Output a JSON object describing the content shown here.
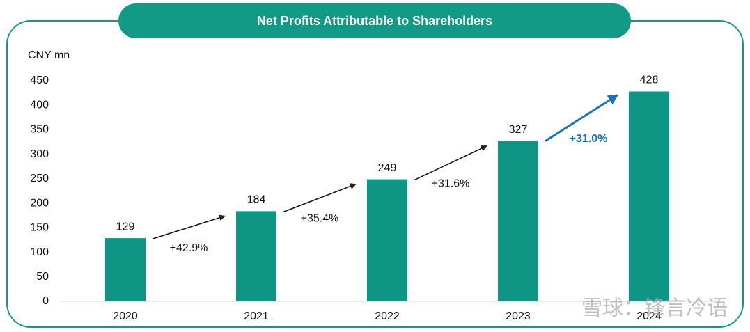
{
  "chart_data": {
    "type": "bar",
    "title": "Net Profits Attributable to Shareholders",
    "y_axis_label": "CNY mn",
    "categories": [
      "2020",
      "2021",
      "2022",
      "2023",
      "2024"
    ],
    "values": [
      129,
      184,
      249,
      327,
      428
    ],
    "color": "#0e9583",
    "ylim": [
      0,
      450
    ],
    "yticks": [
      0,
      50,
      100,
      150,
      200,
      250,
      300,
      350,
      400,
      450
    ],
    "grid": false,
    "annotations": [
      {
        "text": "+42.9%",
        "color": "#111111"
      },
      {
        "text": "+35.4%",
        "color": "#111111"
      },
      {
        "text": "+31.6%",
        "color": "#111111"
      },
      {
        "text": "+31.0%",
        "color": "#1a73c0"
      }
    ],
    "watermark": "雪球：锋言冷语"
  }
}
